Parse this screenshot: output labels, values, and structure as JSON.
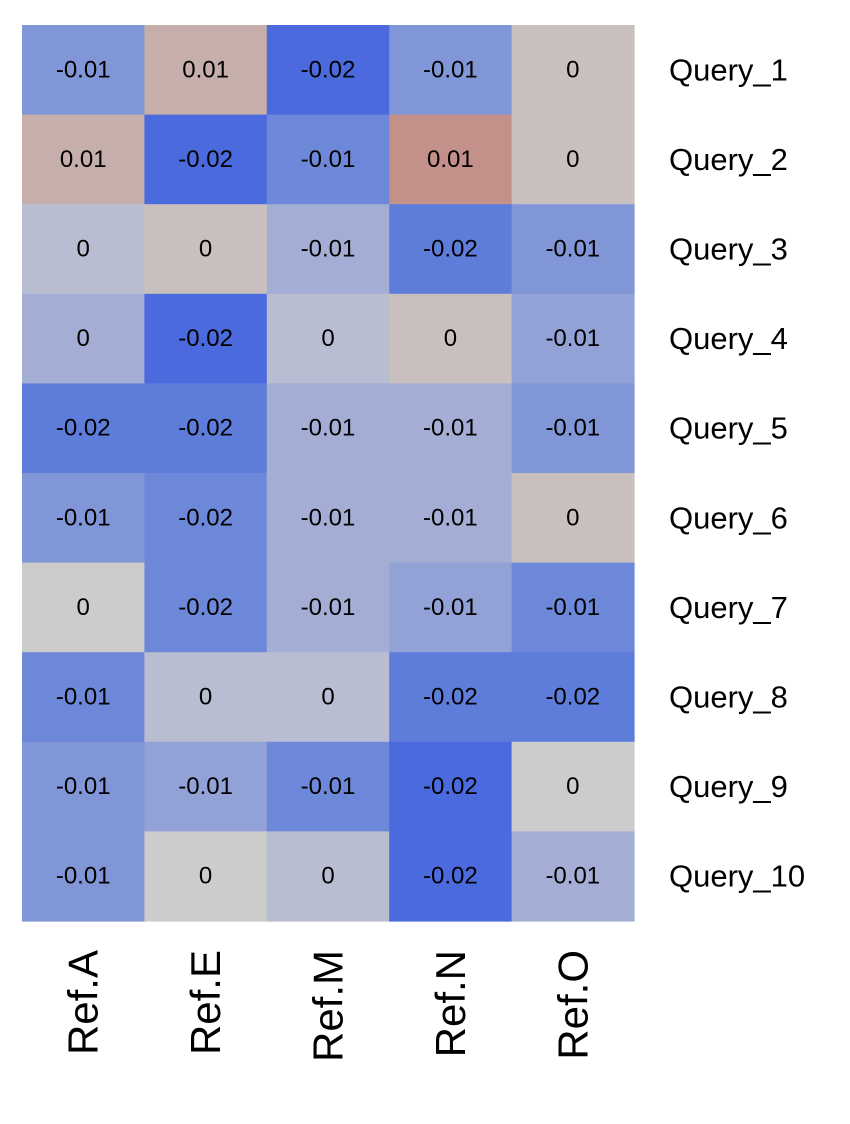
{
  "chart_data": {
    "type": "heatmap",
    "title": "",
    "xlabel": "",
    "ylabel": "",
    "columns": [
      "Ref.A",
      "Ref.E",
      "Ref.M",
      "Ref.N",
      "Ref.O"
    ],
    "rows": [
      "Query_1",
      "Query_2",
      "Query_3",
      "Query_4",
      "Query_5",
      "Query_6",
      "Query_7",
      "Query_8",
      "Query_9",
      "Query_10"
    ],
    "values": [
      [
        -0.01,
        0.01,
        -0.02,
        -0.01,
        0
      ],
      [
        0.01,
        -0.02,
        -0.01,
        0.01,
        0
      ],
      [
        0,
        0,
        -0.01,
        -0.02,
        -0.01
      ],
      [
        0,
        -0.02,
        0,
        0,
        -0.01
      ],
      [
        -0.02,
        -0.02,
        -0.01,
        -0.01,
        -0.01
      ],
      [
        -0.01,
        -0.02,
        -0.01,
        -0.01,
        0
      ],
      [
        0,
        -0.02,
        -0.01,
        -0.01,
        -0.01
      ],
      [
        -0.01,
        0,
        0,
        -0.02,
        -0.02
      ],
      [
        -0.01,
        -0.01,
        -0.01,
        -0.02,
        0
      ],
      [
        -0.01,
        0,
        0,
        -0.02,
        -0.01
      ]
    ],
    "value_labels": [
      [
        "-0.01",
        "0.01",
        "-0.02",
        "-0.01",
        "0"
      ],
      [
        "0.01",
        "-0.02",
        "-0.01",
        "0.01",
        "0"
      ],
      [
        "0",
        "0",
        "-0.01",
        "-0.02",
        "-0.01"
      ],
      [
        "0",
        "-0.02",
        "0",
        "0",
        "-0.01"
      ],
      [
        "-0.02",
        "-0.02",
        "-0.01",
        "-0.01",
        "-0.01"
      ],
      [
        "-0.01",
        "-0.02",
        "-0.01",
        "-0.01",
        "0"
      ],
      [
        "0",
        "-0.02",
        "-0.01",
        "-0.01",
        "-0.01"
      ],
      [
        "-0.01",
        "0",
        "0",
        "-0.02",
        "-0.02"
      ],
      [
        "-0.01",
        "-0.01",
        "-0.01",
        "-0.02",
        "0"
      ],
      [
        "-0.01",
        "0",
        "0",
        "-0.02",
        "-0.01"
      ]
    ],
    "cell_colors": [
      [
        "#8196d6",
        "#c6aeab",
        "#4a6ade",
        "#8196d6",
        "#cabfbf"
      ],
      [
        "#c6aeab",
        "#4a6ade",
        "#6e88d9",
        "#c4908a",
        "#cabfbf"
      ],
      [
        "#b9bdd1",
        "#cabfbf",
        "#a4aed4",
        "#5e7ddb",
        "#8196d6"
      ],
      [
        "#a4aed4",
        "#4a6ade",
        "#b9bdd1",
        "#cabfbf",
        "#93a2d6"
      ],
      [
        "#5e7ddb",
        "#5e7ddb",
        "#a4aed4",
        "#a4aed4",
        "#8196d6"
      ],
      [
        "#8196d6",
        "#6e88d9",
        "#a4aed4",
        "#a4aed4",
        "#cabfbf"
      ],
      [
        "#cccccc",
        "#6e88d9",
        "#a4aed4",
        "#93a2d6",
        "#6e88d9"
      ],
      [
        "#6e88d9",
        "#b9bdd1",
        "#b9bdd1",
        "#5e7ddb",
        "#5e7ddb"
      ],
      [
        "#8196d6",
        "#93a2d6",
        "#6e88d9",
        "#4a6ade",
        "#cccccc"
      ],
      [
        "#8196d6",
        "#cccccc",
        "#b9bdd1",
        "#4a6ade",
        "#a4aed4"
      ]
    ],
    "colorscale": {
      "low": "#4a6ade",
      "mid": "#cccccc",
      "high": "#c4908a"
    },
    "legend": "none",
    "grid": false
  }
}
